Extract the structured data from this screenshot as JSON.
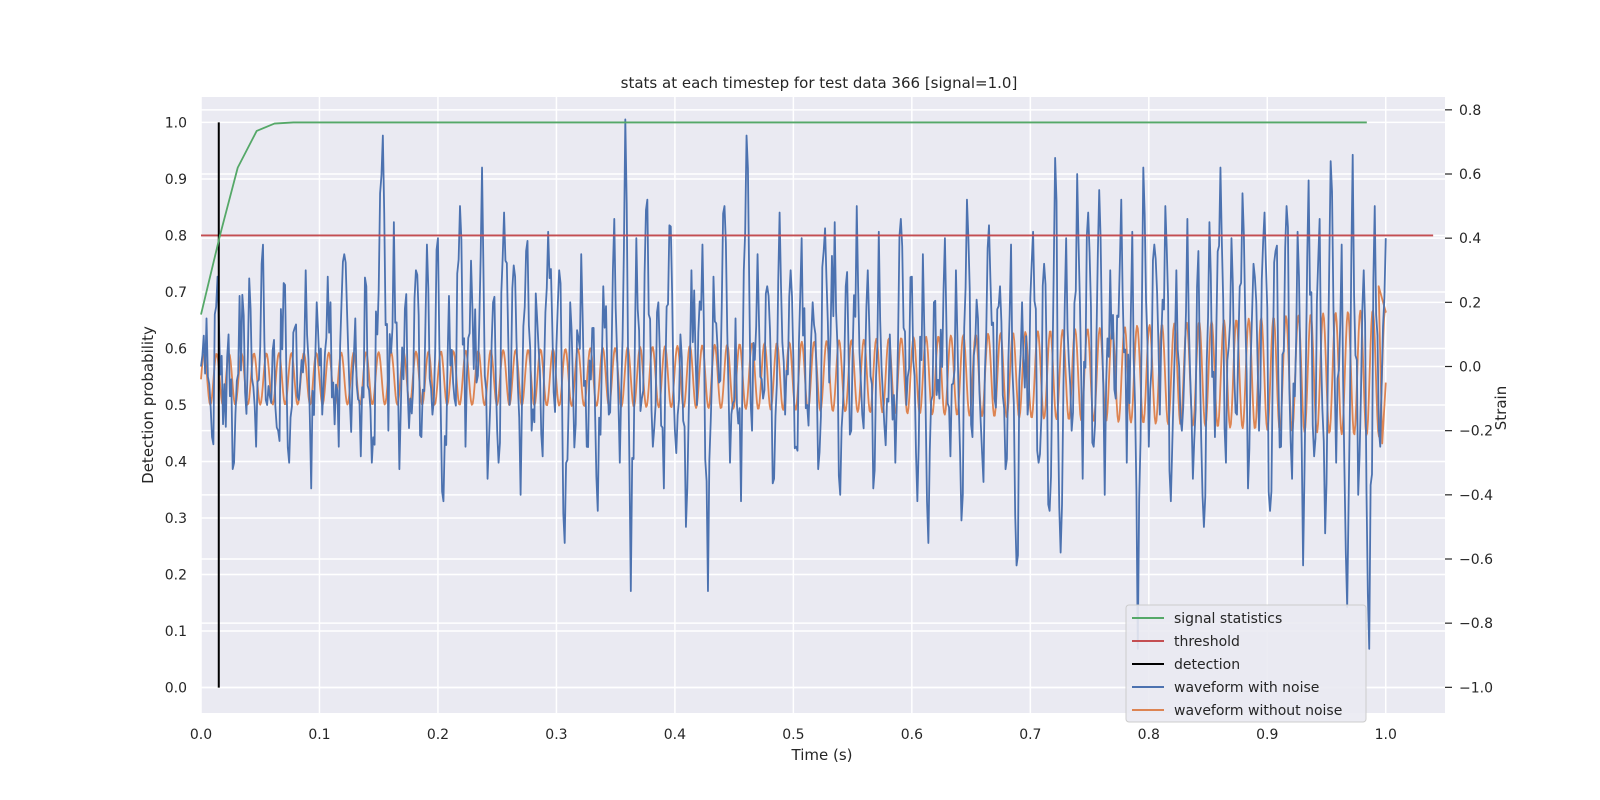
{
  "chart_data": {
    "type": "line",
    "title": "stats at each timestep for test data 366 [signal=1.0]",
    "xlabel": "Time (s)",
    "ylabel": "Detection probability",
    "y2label": "Strain",
    "xlim": [
      0.0,
      1.05
    ],
    "ylim": [
      -0.045,
      1.045
    ],
    "y2lim": [
      -1.08,
      0.84
    ],
    "xticks": [
      "0.0",
      "0.1",
      "0.2",
      "0.3",
      "0.4",
      "0.5",
      "0.6",
      "0.7",
      "0.8",
      "0.9",
      "1.0"
    ],
    "yticks": [
      "0.0",
      "0.1",
      "0.2",
      "0.3",
      "0.4",
      "0.5",
      "0.6",
      "0.7",
      "0.8",
      "0.9",
      "1.0"
    ],
    "y2ticks": [
      "−1.0",
      "−0.8",
      "−0.6",
      "−0.4",
      "−0.2",
      "0.0",
      "0.2",
      "0.4",
      "0.6",
      "0.8"
    ],
    "grid": true,
    "legend_position": "lower right",
    "series": [
      {
        "name": "signal statistics",
        "color": "#55a868",
        "axis": "left",
        "x": [
          0.0,
          0.016,
          0.031,
          0.047,
          0.062,
          0.078,
          0.094,
          0.2,
          0.4,
          0.6,
          0.8,
          0.984
        ],
        "y": [
          0.66,
          0.8,
          0.92,
          0.985,
          0.998,
          1.0,
          1.0,
          1.0,
          1.0,
          1.0,
          1.0,
          1.0
        ]
      },
      {
        "name": "threshold",
        "color": "#c44e52",
        "axis": "left",
        "x": [
          0.0,
          1.04
        ],
        "y": [
          0.8,
          0.8
        ]
      },
      {
        "name": "detection",
        "color": "#000000",
        "axis": "left",
        "x": [
          0.015,
          0.015
        ],
        "y": [
          0.0,
          1.0
        ]
      },
      {
        "name": "waveform with noise",
        "color": "#4c72b0",
        "axis": "right",
        "x_start": 0.0,
        "x_end": 1.0,
        "y": [
          0.0,
          0.15,
          -0.22,
          0.28,
          -0.18,
          0.1,
          -0.3,
          0.22,
          -0.08,
          0.18,
          -0.25,
          0.32,
          -0.12,
          0.05,
          -0.2,
          0.26,
          -0.3,
          0.12,
          -0.05,
          0.3,
          -0.38,
          0.2,
          -0.15,
          0.28,
          -0.05,
          -0.25,
          0.35,
          -0.1,
          0.15,
          -0.28,
          0.25,
          -0.3,
          0.1,
          0.72,
          -0.2,
          0.45,
          -0.32,
          0.18,
          -0.1,
          0.3,
          -0.22,
          0.38,
          -0.15,
          0.4,
          -0.42,
          0.22,
          -0.1,
          0.5,
          -0.25,
          0.33,
          -0.05,
          0.62,
          -0.35,
          0.2,
          -0.3,
          0.48,
          -0.12,
          0.28,
          -0.4,
          0.36,
          -0.2,
          0.15,
          -0.28,
          0.42,
          -0.08,
          0.3,
          -0.55,
          0.2,
          -0.18,
          0.35,
          -0.25,
          0.12,
          -0.45,
          0.25,
          -0.15,
          0.46,
          -0.3,
          0.8,
          -0.7,
          0.4,
          -0.1,
          0.52,
          -0.25,
          0.2,
          -0.38,
          0.44,
          -0.2,
          0.1,
          -0.5,
          0.3,
          -0.12,
          0.38,
          -0.7,
          0.28,
          -0.05,
          0.5,
          -0.3,
          0.15,
          -0.42,
          0.72,
          -0.2,
          0.35,
          -0.1,
          0.22,
          -0.35,
          0.48,
          -0.15,
          0.3,
          -0.25,
          0.4,
          -0.12,
          0.2,
          -0.32,
          0.36,
          -0.05,
          0.45,
          -0.4,
          0.25,
          -0.2,
          0.5,
          -0.15,
          0.3,
          -0.38,
          0.42,
          -0.18,
          0.1,
          -0.3,
          0.46,
          -0.12,
          0.28,
          -0.42,
          0.35,
          -0.55,
          0.2,
          -0.1,
          0.4,
          -0.28,
          0.3,
          -0.48,
          0.52,
          -0.22,
          0.15,
          -0.36,
          0.44,
          -0.1,
          0.25,
          -0.32,
          0.38,
          -0.62,
          0.2,
          -0.15,
          0.42,
          -0.3,
          0.32,
          -0.45,
          0.65,
          -0.58,
          0.4,
          -0.2,
          0.6,
          -0.35,
          0.48,
          -0.25,
          0.55,
          -0.4,
          0.3,
          -0.1,
          0.52,
          -0.3,
          0.42,
          -0.88,
          0.62,
          -0.25,
          0.38,
          -0.15,
          0.5,
          -0.42,
          0.3,
          -0.2,
          0.46,
          -0.35,
          0.36,
          -0.5,
          0.45,
          -0.22,
          0.62,
          -0.3,
          0.4,
          -0.15,
          0.54,
          -0.38,
          0.32,
          -0.2,
          0.48,
          -0.45,
          0.36,
          -0.25,
          0.5,
          -0.35,
          0.42,
          -0.62,
          0.58,
          -0.28,
          0.46,
          -0.52,
          0.64,
          -0.3,
          0.38,
          -0.75,
          0.66,
          -0.4,
          0.3,
          -0.88,
          0.5,
          -0.25,
          0.4
        ]
      },
      {
        "name": "waveform without noise",
        "color": "#dd8452",
        "axis": "right",
        "x_start": 0.0,
        "x_end": 1.0,
        "cycles": 95,
        "amplitude_start": 0.08,
        "amplitude_end": 0.2,
        "phase_offset": -0.2,
        "end_values": [
          0.25,
          -0.24,
          -0.05
        ]
      }
    ]
  }
}
